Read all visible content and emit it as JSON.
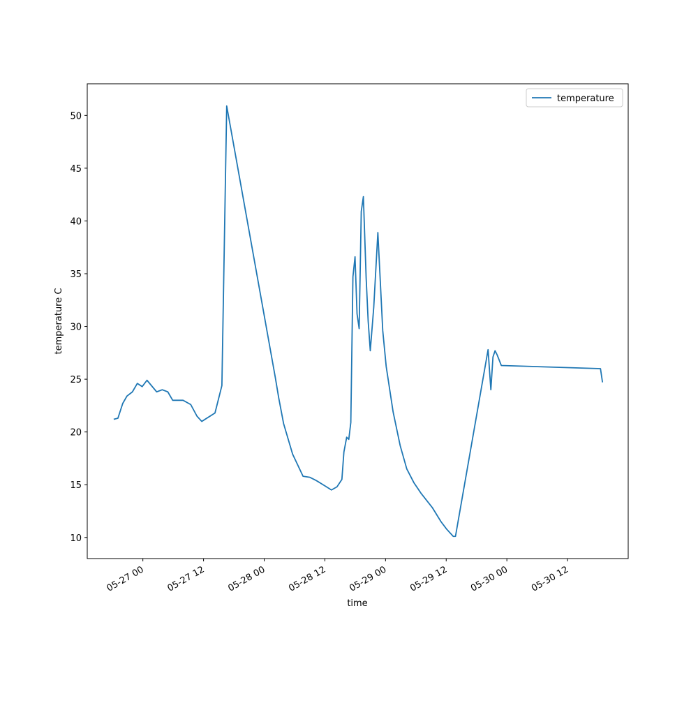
{
  "chart_data": {
    "type": "line",
    "xlabel": "time",
    "ylabel": "temperature C",
    "x": [
      "05-26 18:14",
      "05-26 19:04",
      "05-26 20:01",
      "05-26 20:51",
      "05-26 21:56",
      "05-26 22:54",
      "05-26 23:52",
      "05-27 00:49",
      "05-27 02:44",
      "05-27 03:50",
      "05-27 04:56",
      "05-27 05:54",
      "05-27 07:57",
      "05-27 09:28",
      "05-27 10:42",
      "05-27 11:39",
      "05-27 14:16",
      "05-27 15:38",
      "05-27 16:35",
      "05-28 02:11",
      "05-28 02:53",
      "05-28 03:50",
      "05-28 05:37",
      "05-28 07:41",
      "05-28 09:03",
      "05-28 10:17",
      "05-28 11:39",
      "05-28 13:18",
      "05-28 14:24",
      "05-28 15:22",
      "05-28 15:46",
      "05-28 16:19",
      "05-28 16:44",
      "05-28 17:08",
      "05-28 17:33",
      "05-28 17:58",
      "05-28 18:22",
      "05-28 18:47",
      "05-28 19:12",
      "05-28 19:37",
      "05-28 20:10",
      "05-28 20:34",
      "05-28 20:59",
      "05-28 21:40",
      "05-28 22:29",
      "05-28 23:27",
      "05-29 00:08",
      "05-29 01:30",
      "05-29 02:54",
      "05-29 04:12",
      "05-29 05:36",
      "05-29 07:00",
      "05-29 09:18",
      "05-29 10:58",
      "05-29 12:04",
      "05-29 13:24",
      "05-29 13:50",
      "05-29 20:17",
      "05-29 20:50",
      "05-29 21:15",
      "05-29 21:40",
      "05-29 22:05",
      "05-29 22:54",
      "05-30 18:31",
      "05-30 18:55"
    ],
    "series": [
      {
        "name": "temperature",
        "color": "#1f77b4",
        "values": [
          21.2,
          21.3,
          22.7,
          23.4,
          23.8,
          24.6,
          24.3,
          24.9,
          23.8,
          24.0,
          23.8,
          23.0,
          23.0,
          22.6,
          21.5,
          21.0,
          21.8,
          24.4,
          50.9,
          25.2,
          23.2,
          20.8,
          17.9,
          15.8,
          15.7,
          15.4,
          15.0,
          14.5,
          14.8,
          15.5,
          18.1,
          19.5,
          19.3,
          20.9,
          34.7,
          36.6,
          31.2,
          29.8,
          40.9,
          42.3,
          34.6,
          30.5,
          27.7,
          31.8,
          38.9,
          29.6,
          26.2,
          21.9,
          18.7,
          16.5,
          15.2,
          14.2,
          12.8,
          11.5,
          10.8,
          10.1,
          10.1,
          27.8,
          24.0,
          27.1,
          27.7,
          27.3,
          26.3,
          26.0,
          24.7
        ]
      }
    ],
    "xlim": [
      "05-26 13",
      "05-31 00"
    ],
    "xticks": [
      "05-27 00",
      "05-27 12",
      "05-28 00",
      "05-28 12",
      "05-29 00",
      "05-29 12",
      "05-30 00",
      "05-30 12"
    ],
    "ylim": [
      8,
      53
    ],
    "yticks": [
      10,
      15,
      20,
      25,
      30,
      35,
      40,
      45,
      50
    ],
    "legend": "upper right"
  }
}
